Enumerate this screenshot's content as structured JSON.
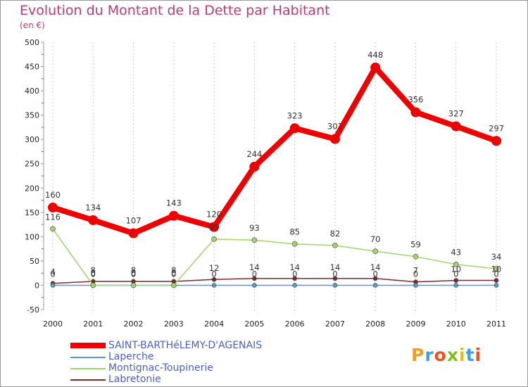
{
  "chart_data": {
    "type": "line",
    "title": "Evolution du Montant de la Dette par Habitant",
    "ylabel": "(en €)",
    "xlabel": "",
    "ylim": [
      -50,
      500
    ],
    "yticks": [
      -50,
      0,
      50,
      100,
      150,
      200,
      250,
      300,
      350,
      400,
      450,
      500
    ],
    "categories": [
      "2000",
      "2001",
      "2002",
      "2003",
      "2004",
      "2005",
      "2006",
      "2007",
      "2008",
      "2009",
      "2010",
      "2011"
    ],
    "series": [
      {
        "name": "Labretonie",
        "color": "#7a2a2a",
        "values": [
          4,
          8,
          8,
          8,
          12,
          14,
          14,
          14,
          14,
          7,
          10,
          10
        ],
        "labels": [
          "4",
          "8",
          "8",
          "8",
          "12",
          "14",
          "14",
          "14",
          "14",
          "7",
          "10",
          "10"
        ]
      },
      {
        "name": "Laperche",
        "color": "#5b97c7",
        "values": [
          0,
          0,
          0,
          0,
          0,
          0,
          0,
          0,
          0,
          0,
          0,
          0
        ],
        "labels": [
          "0",
          "0",
          "0",
          "0",
          "0",
          "0",
          "0",
          "0",
          "0",
          "0",
          "0",
          "0"
        ]
      },
      {
        "name": "Montignac-Toupinerie",
        "color": "#9fd46a",
        "values": [
          116,
          0,
          0,
          0,
          95,
          93,
          85,
          82,
          70,
          59,
          43,
          34
        ],
        "labels": [
          "116",
          "0",
          "0",
          "0",
          "95",
          "93",
          "85",
          "82",
          "70",
          "59",
          "43",
          "34"
        ]
      },
      {
        "name": "SAINT-BARTHéLEMY-D'AGENAIS",
        "color": "#ee0000",
        "values": [
          160,
          134,
          107,
          143,
          120,
          244,
          323,
          301,
          448,
          356,
          327,
          297
        ],
        "labels": [
          "160",
          "134",
          "107",
          "143",
          "120",
          "244",
          "323",
          "301",
          "448",
          "356",
          "327",
          "297"
        ]
      }
    ],
    "legend": [
      "SAINT-BARTHéLEMY-D'AGENAIS",
      "Laperche",
      "Montignac-Toupinerie",
      "Labretonie"
    ],
    "legend_position": "bottom-left"
  },
  "branding": {
    "logo_text": "Proxiti"
  }
}
